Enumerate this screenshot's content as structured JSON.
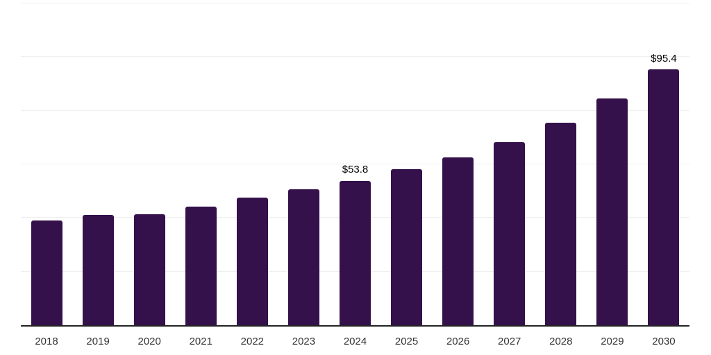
{
  "chart_data": {
    "type": "bar",
    "title": "",
    "xlabel": "",
    "ylabel": "",
    "categories": [
      "2018",
      "2019",
      "2020",
      "2021",
      "2022",
      "2023",
      "2024",
      "2025",
      "2026",
      "2027",
      "2028",
      "2029",
      "2030"
    ],
    "values": [
      39.0,
      41.2,
      41.4,
      44.2,
      47.5,
      50.7,
      53.8,
      58.1,
      62.5,
      68.4,
      75.4,
      84.5,
      95.4
    ],
    "data_labels": [
      "",
      "",
      "",
      "",
      "",
      "",
      "$53.8",
      "",
      "",
      "",
      "",
      "",
      "$95.4"
    ],
    "ylim": [
      0,
      120
    ],
    "ytick_step": 20,
    "y_axis_labels_shown": false,
    "grid": true,
    "legend": false,
    "colors": {
      "bar": "#34114B",
      "value_label": "#000000",
      "axis_label": "#333333",
      "gridline": "#efefef",
      "axis_line": "#222222",
      "background": "#ffffff"
    }
  }
}
